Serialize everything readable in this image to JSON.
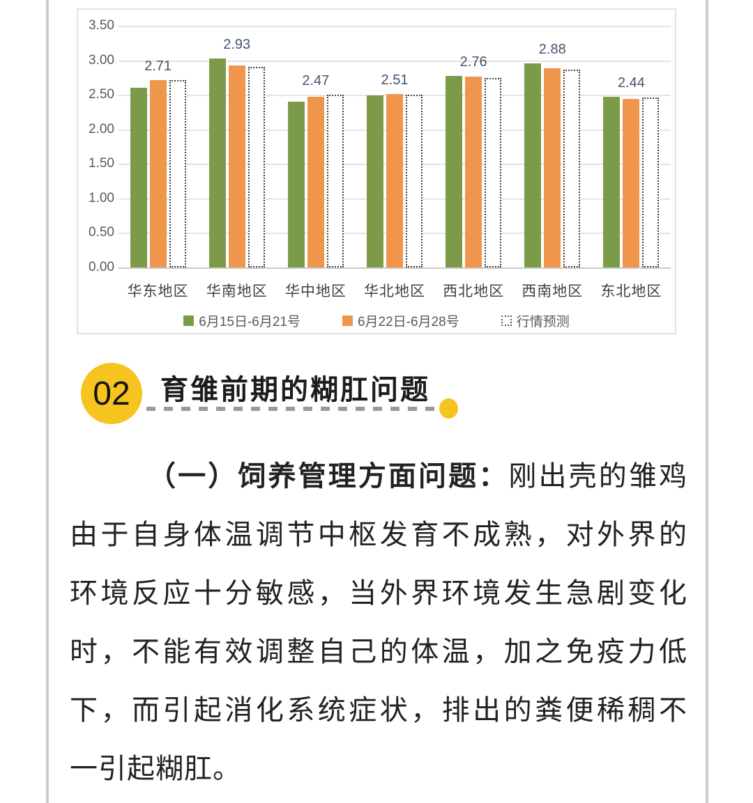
{
  "chart_data": {
    "type": "bar",
    "title": "",
    "xlabel": "",
    "ylabel": "",
    "ylim": [
      0,
      3.5
    ],
    "yticks": [
      "3.50",
      "3.00",
      "2.50",
      "2.00",
      "1.50",
      "1.00",
      "0.50",
      "0.00"
    ],
    "grid": true,
    "legend_position": "bottom",
    "categories": [
      "华东地区",
      "华南地区",
      "华中地区",
      "华北地区",
      "西北地区",
      "西南地区",
      "东北地区"
    ],
    "series": [
      {
        "name": "6月15日-6月21号",
        "color": "#7C9B49",
        "style": "solid",
        "values": [
          2.6,
          3.03,
          2.4,
          2.49,
          2.77,
          2.96,
          2.47
        ]
      },
      {
        "name": "6月22日-6月28号",
        "color": "#F0954C",
        "style": "solid",
        "values": [
          2.71,
          2.93,
          2.47,
          2.51,
          2.76,
          2.88,
          2.44
        ]
      },
      {
        "name": "行情预测",
        "color": "#FFFFFF",
        "style": "dotted-outline",
        "values": [
          2.71,
          2.9,
          2.5,
          2.5,
          2.74,
          2.86,
          2.46
        ]
      }
    ],
    "data_labels": {
      "on_series": "6月22日-6月28号",
      "values": [
        "2.71",
        "2.93",
        "2.47",
        "2.51",
        "2.76",
        "2.88",
        "2.44"
      ]
    }
  },
  "section": {
    "number": "02",
    "title": "育雏前期的糊肛问题",
    "badge_color": "#F7C31E"
  },
  "article": {
    "lead_bold": "（一）饲养管理方面问题：",
    "lead_rest": "刚出壳的雏鸡",
    "lines": [
      "由于自身体温调节中枢发育不成熟，对外界的",
      "环境反应十分敏感，当外界环境发生急剧变化",
      "时，不能有效调整自己的体温，加之免疫力低",
      "下，而引起消化系统症状，排出的粪便稀稠不",
      "一引起糊肛。"
    ]
  },
  "colors": {
    "page_rule": "#cbcbcb",
    "chart_border": "#e2e2e2",
    "gridline": "#e3e3e3",
    "tick_text": "#595959",
    "xlabel_text": "#404040",
    "legend_text": "#595959",
    "data_label_text": "#44546A",
    "body_text": "#222222",
    "green_series": "#7C9B49",
    "orange_series": "#F0954C"
  }
}
